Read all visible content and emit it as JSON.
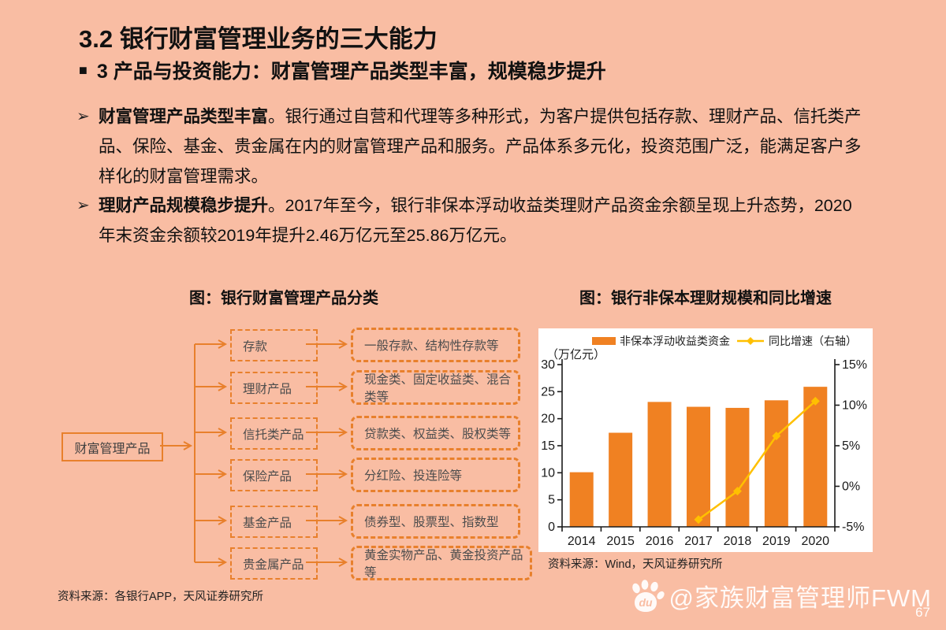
{
  "slide": {
    "title": "3.2 银行财富管理业务的三大能力",
    "subtitle_marker": "■",
    "subtitle": "3 产品与投资能力：财富管理产品类型丰富，规模稳步提升",
    "page_number": "67"
  },
  "bullets": [
    {
      "marker": "➢",
      "lead": "财富管理产品类型丰富",
      "text": "。银行通过自营和代理等多种形式，为客户提供包括存款、理财产品、信托类产品、保险、基金、贵金属在内的财富管理产品和服务。产品体系多元化，投资范围广泛，能满足客户多样化的财富管理需求。"
    },
    {
      "marker": "➢",
      "lead": "理财产品规模稳步提升",
      "text": "。2017年至今，银行非保本浮动收益类理财产品资金余额呈现上升态势，2020年末资金余额较2019年提升2.46万亿元至25.86万亿元。"
    }
  ],
  "diagram": {
    "title": "图：银行财富管理产品分类",
    "root": "财富管理产品",
    "rows": [
      {
        "category": "存款",
        "detail": "一般存款、结构性存款等"
      },
      {
        "category": "理财产品",
        "detail": "现金类、固定收益类、混合类等"
      },
      {
        "category": "信托类产品",
        "detail": "贷款类、权益类、股权类等"
      },
      {
        "category": "保险产品",
        "detail": "分红险、投连险等"
      },
      {
        "category": "基金产品",
        "detail": "债券型、股票型、指数型"
      },
      {
        "category": "贵金属产品",
        "detail": "黄金实物产品、黄金投资产品等"
      }
    ],
    "source": "资料来源：各银行APP，天风证券研究所"
  },
  "chart": {
    "title": "图：银行非保本理财规模和同比增速",
    "unit_label": "（万亿元）",
    "legend_bar": "非保本浮动收益类资金",
    "legend_line": "同比增速（右轴）",
    "source": "资料来源：Wind，天风证券研究所"
  },
  "chart_data": {
    "type": "bar",
    "categories": [
      "2014",
      "2015",
      "2016",
      "2017",
      "2018",
      "2019",
      "2020"
    ],
    "series": [
      {
        "name": "非保本浮动收益类资金",
        "type": "bar",
        "axis": "left",
        "values": [
          10.1,
          17.4,
          23.1,
          22.2,
          22.0,
          23.4,
          25.9
        ],
        "color": "#F08122"
      },
      {
        "name": "同比增速（右轴）",
        "type": "line",
        "axis": "right",
        "values": [
          null,
          null,
          null,
          -4.1,
          -0.6,
          6.2,
          10.5
        ],
        "color": "#FFC000"
      }
    ],
    "left_axis": {
      "min": 0,
      "max": 30,
      "step": 5,
      "label": "万亿元"
    },
    "right_axis": {
      "min": -5,
      "max": 15,
      "step": 5,
      "suffix": "%"
    },
    "legend_position": "top",
    "grid": false
  },
  "watermark": {
    "logo": "baidu-paw",
    "logo_text": "du",
    "handle": "@家族财富管理师FWM"
  },
  "colors": {
    "background": "#F9BDA3",
    "accent_orange": "#E8802C",
    "bar_orange": "#F08122",
    "line_gold": "#FFC000",
    "panel_white": "#FFFFFF"
  }
}
